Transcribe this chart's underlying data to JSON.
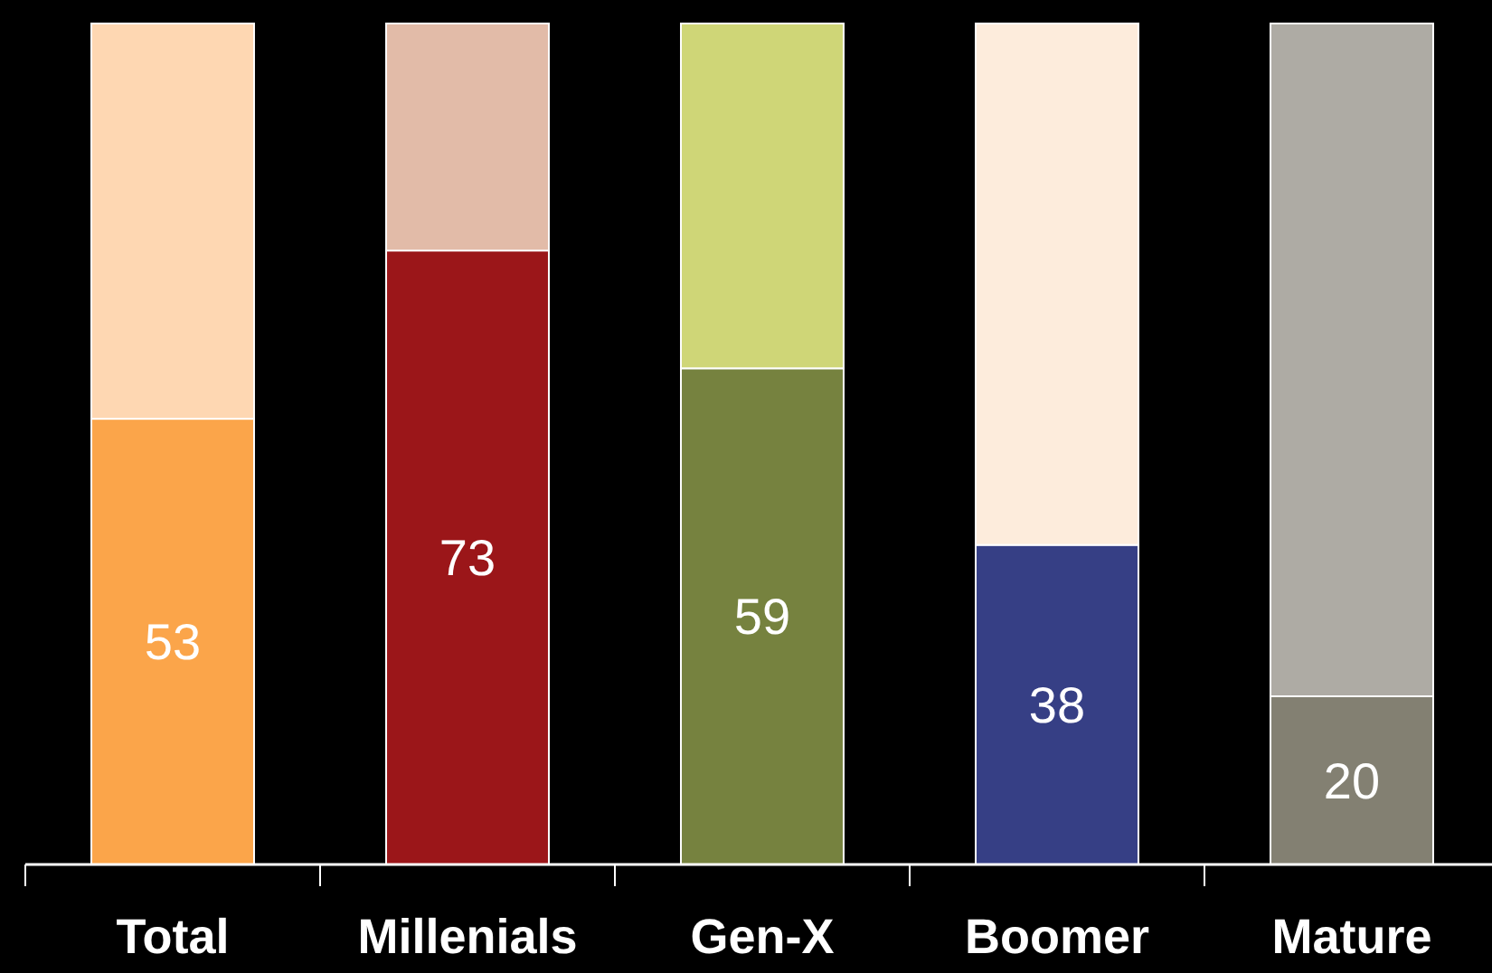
{
  "chart_data": {
    "type": "bar",
    "stacked": true,
    "categories": [
      "Total",
      "Millenials",
      "Gen-X",
      "Boomer",
      "Mature"
    ],
    "series": [
      {
        "colors": [
          "#fba54a",
          "#9b1619",
          "#76823f",
          "#363f85",
          "#838072"
        ],
        "values": [
          53,
          73,
          59,
          38,
          20
        ],
        "value_labels": [
          "53",
          "73",
          "59",
          "38",
          "20"
        ]
      },
      {
        "colors": [
          "#fed7b2",
          "#e2bba8",
          "#cfd677",
          "#fdecdc",
          "#aeaba4"
        ],
        "values": [
          47,
          27,
          41,
          62,
          80
        ]
      }
    ]
  }
}
